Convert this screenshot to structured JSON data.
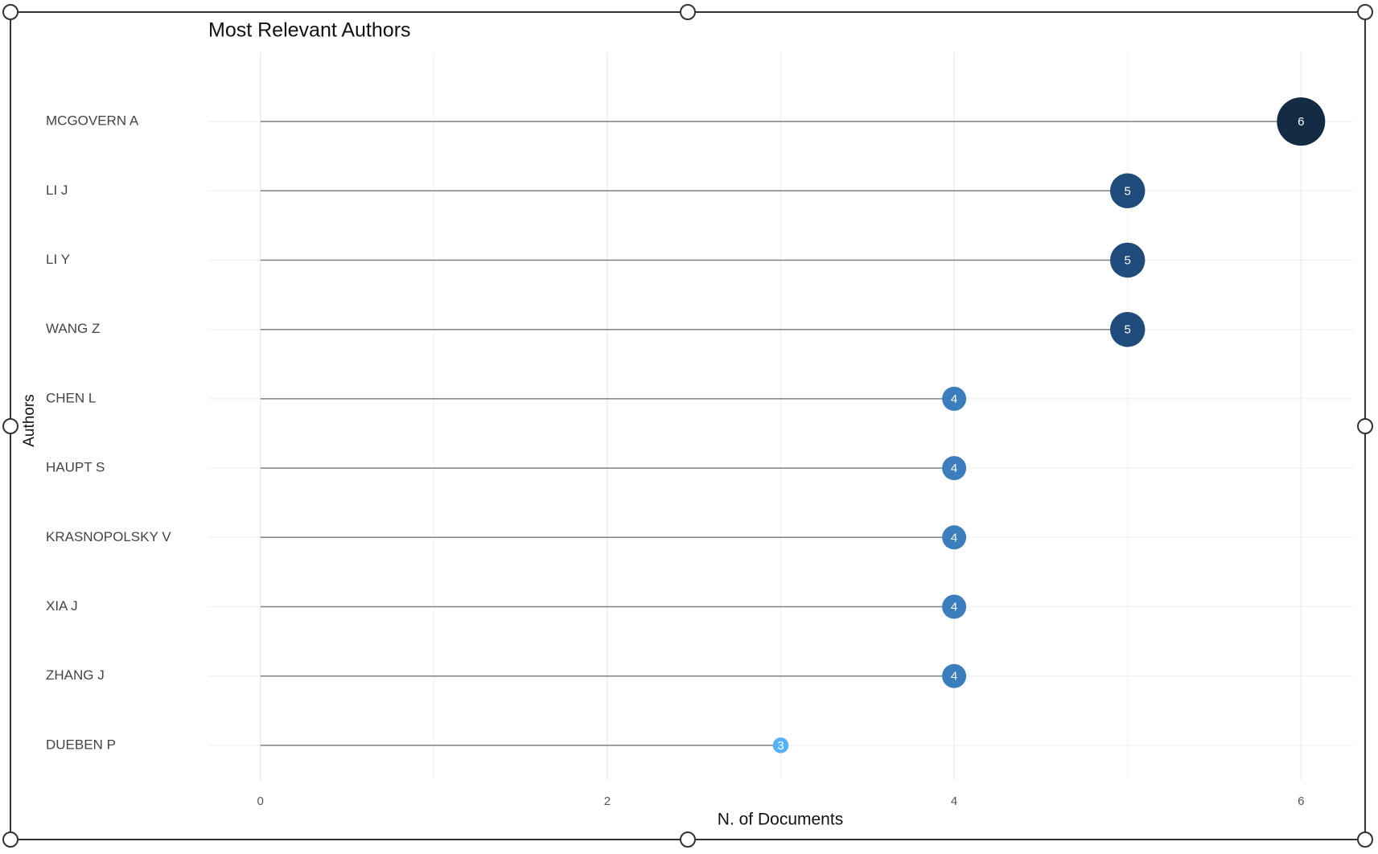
{
  "chart_data": {
    "type": "lollipop",
    "title": "Most Relevant Authors",
    "x_label": "N. of Documents",
    "y_label": "Authors",
    "categories": [
      "MCGOVERN A",
      "LI J",
      "LI Y",
      "WANG Z",
      "CHEN L",
      "HAUPT S",
      "KRASNOPOLSKY V",
      "XIA J",
      "ZHANG J",
      "DUEBEN P"
    ],
    "values": [
      6,
      5,
      5,
      5,
      4,
      4,
      4,
      4,
      4,
      3
    ],
    "colors": [
      "#132b43",
      "#1f4c7a",
      "#1f4c7a",
      "#1f4c7a",
      "#3b7dbd",
      "#3b7dbd",
      "#3b7dbd",
      "#3b7dbd",
      "#3b7dbd",
      "#56b1f7"
    ],
    "stem_color": "#808080",
    "xlim": [
      -0.3,
      6.3
    ],
    "xticks": [
      0,
      2,
      4,
      6
    ],
    "xminorticks": [
      1,
      3,
      5
    ],
    "grid": true
  }
}
